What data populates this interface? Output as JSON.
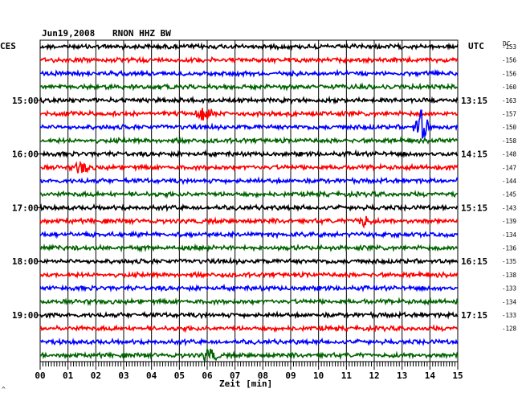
{
  "header": {
    "date": "Jun19,2008",
    "station": "RNON HHZ BW",
    "left_zone": "CES",
    "right_zone": "UTC",
    "dc_label": "DC"
  },
  "footer": {
    "xlabel": "Zeit [min]",
    "corner_mark": "^"
  },
  "colors": {
    "black": "#000000",
    "red": "#ff0000",
    "blue": "#0000ff",
    "green": "#006400"
  },
  "chart_data": {
    "type": "line",
    "title": "Jun19,2008   RNON HHZ BW",
    "xlabel": "Zeit [min]",
    "xlim": [
      0,
      15
    ],
    "x_ticks": [
      "00",
      "01",
      "02",
      "03",
      "04",
      "05",
      "06",
      "07",
      "08",
      "09",
      "10",
      "11",
      "12",
      "13",
      "14",
      "15"
    ],
    "grid": true,
    "trace_color_cycle": [
      "black",
      "red",
      "blue",
      "green"
    ],
    "left_hour_labels": [
      "15:00",
      "16:00",
      "17:00",
      "18:00",
      "19:00"
    ],
    "right_hour_labels": [
      "13:15",
      "14:15",
      "15:15",
      "16:15",
      "17:15"
    ],
    "dc_offsets": [
      -153,
      -156,
      -156,
      -160,
      -163,
      -157,
      -150,
      -158,
      -148,
      -147,
      -144,
      -145,
      -143,
      -139,
      -134,
      -136,
      -135,
      -138,
      -133,
      -134,
      -133,
      -128
    ],
    "events": [
      {
        "trace": 5,
        "minute": 5.9,
        "amplitude": 0.7
      },
      {
        "trace": 6,
        "minute": 13.7,
        "amplitude": 1.4
      },
      {
        "trace": 9,
        "minute": 1.5,
        "amplitude": 0.5
      },
      {
        "trace": 13,
        "minute": 11.6,
        "amplitude": 0.5
      },
      {
        "trace": 23,
        "minute": 6.1,
        "amplitude": 0.6
      }
    ]
  }
}
